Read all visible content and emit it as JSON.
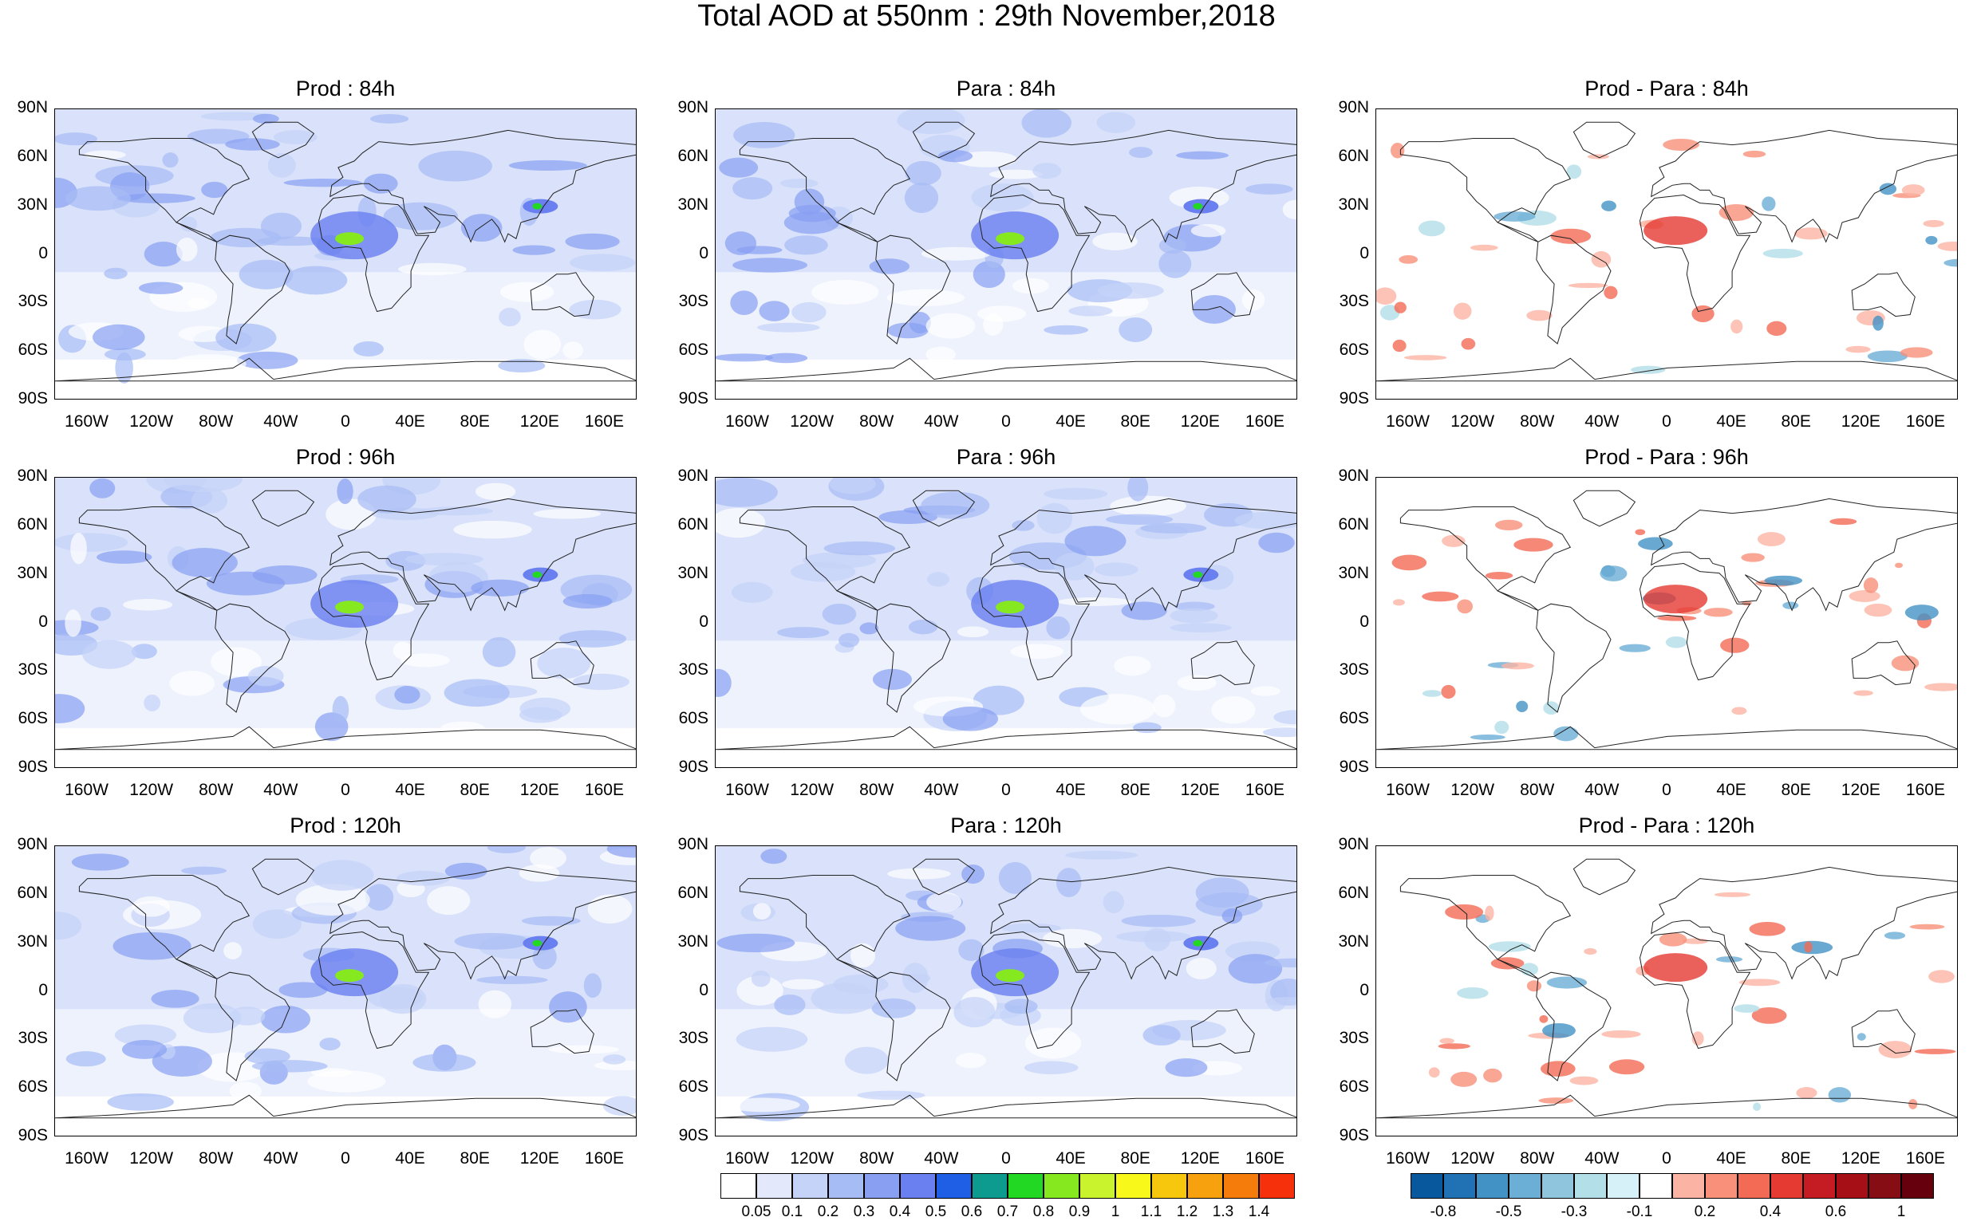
{
  "title": "Total AOD at 550nm : 29th November,2018",
  "panels": [
    {
      "title": "Prod : 84h",
      "kind": "aod"
    },
    {
      "title": "Para : 84h",
      "kind": "aod"
    },
    {
      "title": "Prod - Para : 84h",
      "kind": "diff"
    },
    {
      "title": "Prod : 96h",
      "kind": "aod"
    },
    {
      "title": "Para : 96h",
      "kind": "aod"
    },
    {
      "title": "Prod - Para : 96h",
      "kind": "diff"
    },
    {
      "title": "Prod : 120h",
      "kind": "aod"
    },
    {
      "title": "Para : 120h",
      "kind": "aod"
    },
    {
      "title": "Prod - Para : 120h",
      "kind": "diff"
    }
  ],
  "lat_ticks": [
    "90N",
    "60N",
    "30N",
    "0",
    "30S",
    "60S",
    "90S"
  ],
  "lon_ticks": [
    "160W",
    "120W",
    "80W",
    "40W",
    "0",
    "40E",
    "80E",
    "120E",
    "160E"
  ],
  "aod_colorbar": {
    "labels": [
      "0.05",
      "0.1",
      "0.2",
      "0.3",
      "0.4",
      "0.5",
      "0.6",
      "0.7",
      "0.8",
      "0.9",
      "1",
      "1.1",
      "1.2",
      "1.3",
      "1.4"
    ],
    "colors": [
      "#ffffff",
      "#e3e9fb",
      "#c5d3f8",
      "#a6bcf5",
      "#889ff2",
      "#6a7ff0",
      "#1f5fe6",
      "#0e9b8f",
      "#22d822",
      "#86e81f",
      "#c8f32d",
      "#f8f81a",
      "#f7c70e",
      "#f6a10d",
      "#f57b0a",
      "#f5300a"
    ]
  },
  "diff_colorbar": {
    "labels": [
      "-0.8",
      "-0.5",
      "-0.3",
      "-0.1",
      "0.2",
      "0.4",
      "0.6",
      "1"
    ],
    "colors": [
      "#08589e",
      "#2171b5",
      "#4292c6",
      "#6baed6",
      "#8fc5dd",
      "#b3dfe9",
      "#d6f1f7",
      "#ffffff",
      "#fbb4a4",
      "#f8907a",
      "#f36a55",
      "#e53a32",
      "#c51b23",
      "#a50f15",
      "#850d13",
      "#67000d"
    ]
  }
}
